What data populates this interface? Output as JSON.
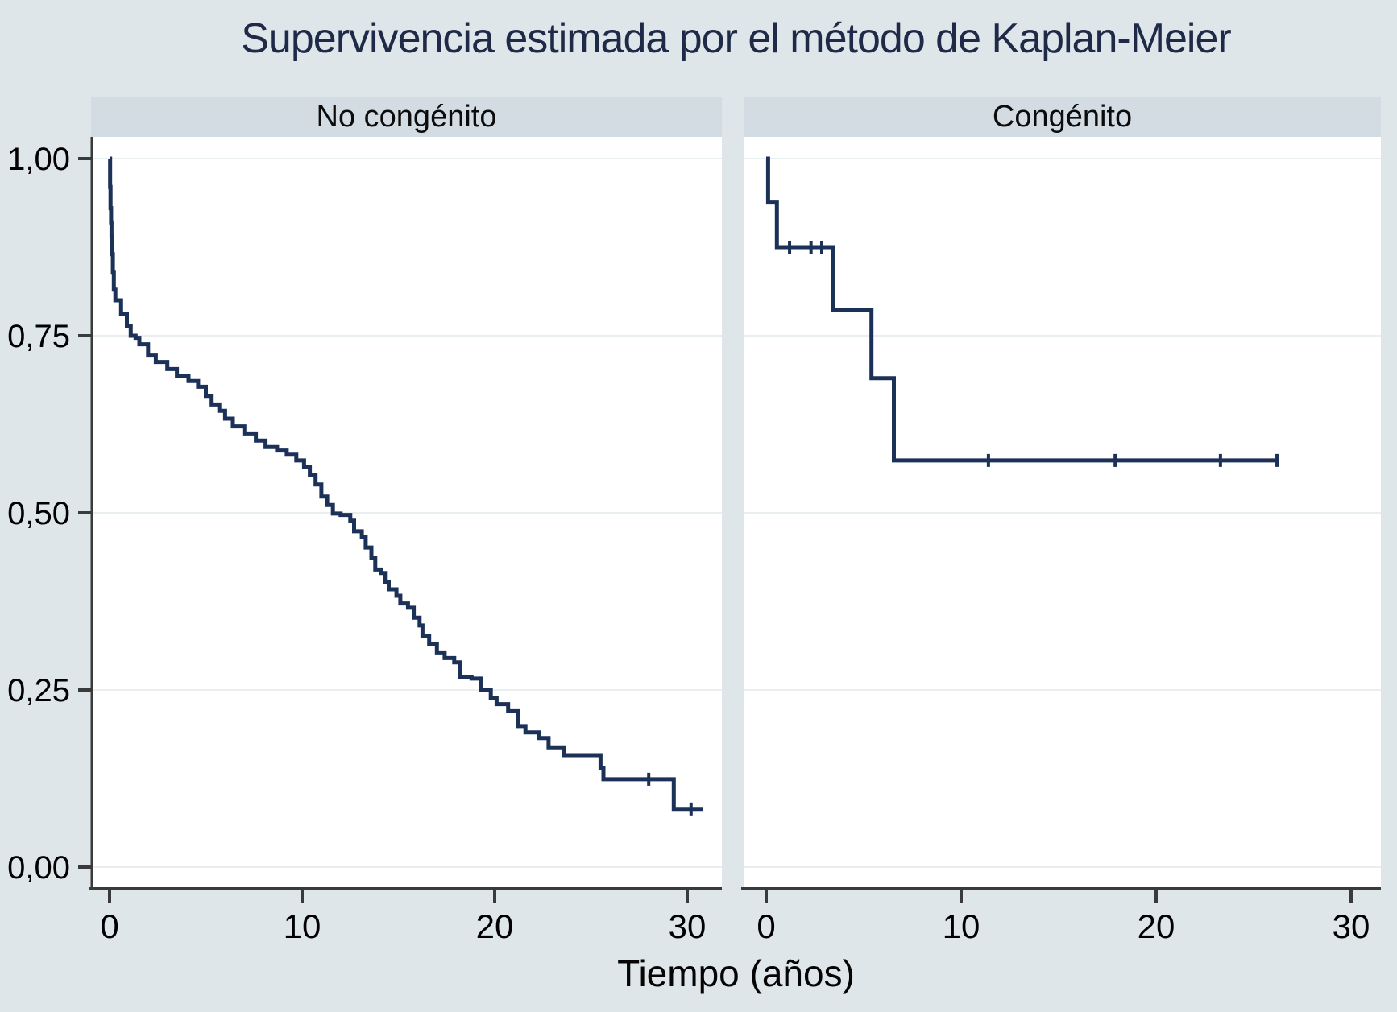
{
  "colors": {
    "background": "#dfe6ea",
    "band": "#d3dce3",
    "plot_background": "#ffffff",
    "gridline": "#e9eef1",
    "axis": "#3a3a3a",
    "tick_text": "#000000",
    "title_text": "#1e2a47",
    "curve": "#1c3158"
  },
  "chart_data": {
    "type": "line",
    "subtype": "kaplan_meier_step",
    "title": "Supervivencia estimada por el método de Kaplan-Meier",
    "xlabel": "Tiempo (años)",
    "ylabel": "",
    "xlim": [
      -1,
      31.8
    ],
    "ylim": [
      0,
      1.03
    ],
    "grid": "horizontal",
    "legend": "none",
    "x_ticks": {
      "values": [
        0,
        10,
        20,
        30
      ],
      "labels": [
        "0",
        "10",
        "20",
        "30"
      ]
    },
    "y_ticks": {
      "values": [
        1.0,
        0.75,
        0.5,
        0.25,
        0.0
      ],
      "labels": [
        "1,00",
        "0,75",
        "0,50",
        "0,25",
        "0,00"
      ]
    },
    "panels": [
      {
        "label": "No congénito",
        "steps": [
          [
            0,
            1.0
          ],
          [
            0.03,
            0.96
          ],
          [
            0.05,
            0.93
          ],
          [
            0.08,
            0.91
          ],
          [
            0.1,
            0.89
          ],
          [
            0.13,
            0.865
          ],
          [
            0.17,
            0.84
          ],
          [
            0.22,
            0.815
          ],
          [
            0.3,
            0.8
          ],
          [
            0.6,
            0.781
          ],
          [
            0.9,
            0.764
          ],
          [
            1.1,
            0.75
          ],
          [
            1.35,
            0.747
          ],
          [
            1.55,
            0.738
          ],
          [
            2.0,
            0.722
          ],
          [
            2.4,
            0.713
          ],
          [
            3.0,
            0.703
          ],
          [
            3.5,
            0.693
          ],
          [
            4.1,
            0.686
          ],
          [
            4.6,
            0.678
          ],
          [
            5.0,
            0.665
          ],
          [
            5.3,
            0.653
          ],
          [
            5.7,
            0.644
          ],
          [
            6.0,
            0.633
          ],
          [
            6.4,
            0.622
          ],
          [
            7.0,
            0.612
          ],
          [
            7.6,
            0.602
          ],
          [
            8.1,
            0.593
          ],
          [
            8.7,
            0.588
          ],
          [
            9.2,
            0.582
          ],
          [
            9.7,
            0.574
          ],
          [
            10.1,
            0.565
          ],
          [
            10.4,
            0.553
          ],
          [
            10.7,
            0.54
          ],
          [
            11.0,
            0.523
          ],
          [
            11.3,
            0.511
          ],
          [
            11.6,
            0.499
          ],
          [
            12.0,
            0.497
          ],
          [
            12.5,
            0.489
          ],
          [
            12.7,
            0.474
          ],
          [
            13.1,
            0.466
          ],
          [
            13.3,
            0.451
          ],
          [
            13.6,
            0.436
          ],
          [
            13.8,
            0.42
          ],
          [
            14.1,
            0.415
          ],
          [
            14.3,
            0.402
          ],
          [
            14.5,
            0.392
          ],
          [
            14.9,
            0.383
          ],
          [
            15.1,
            0.372
          ],
          [
            15.5,
            0.366
          ],
          [
            15.8,
            0.352
          ],
          [
            16.1,
            0.341
          ],
          [
            16.25,
            0.326
          ],
          [
            16.6,
            0.315
          ],
          [
            17.0,
            0.303
          ],
          [
            17.4,
            0.295
          ],
          [
            17.9,
            0.289
          ],
          [
            18.2,
            0.268
          ],
          [
            18.8,
            0.266
          ],
          [
            19.3,
            0.25
          ],
          [
            19.8,
            0.239
          ],
          [
            20.1,
            0.23
          ],
          [
            20.7,
            0.22
          ],
          [
            21.2,
            0.199
          ],
          [
            21.6,
            0.19
          ],
          [
            22.3,
            0.182
          ],
          [
            22.8,
            0.169
          ],
          [
            23.6,
            0.158
          ],
          [
            25.5,
            0.14
          ],
          [
            25.65,
            0.124
          ],
          [
            29.3,
            0.082
          ],
          [
            30.8,
            0.082
          ]
        ],
        "censor_marks": [
          [
            28.0,
            0.124
          ],
          [
            30.2,
            0.082
          ]
        ]
      },
      {
        "label": "Congénito",
        "steps": [
          [
            0,
            1.0
          ],
          [
            0.1,
            0.938
          ],
          [
            0.55,
            0.875
          ],
          [
            3.45,
            0.786
          ],
          [
            5.4,
            0.69
          ],
          [
            6.55,
            0.574
          ],
          [
            26.2,
            0.574
          ]
        ],
        "censor_marks": [
          [
            1.2,
            0.875
          ],
          [
            2.3,
            0.875
          ],
          [
            2.85,
            0.875
          ],
          [
            11.4,
            0.574
          ],
          [
            17.9,
            0.574
          ],
          [
            23.3,
            0.574
          ],
          [
            26.2,
            0.574
          ]
        ]
      }
    ]
  }
}
